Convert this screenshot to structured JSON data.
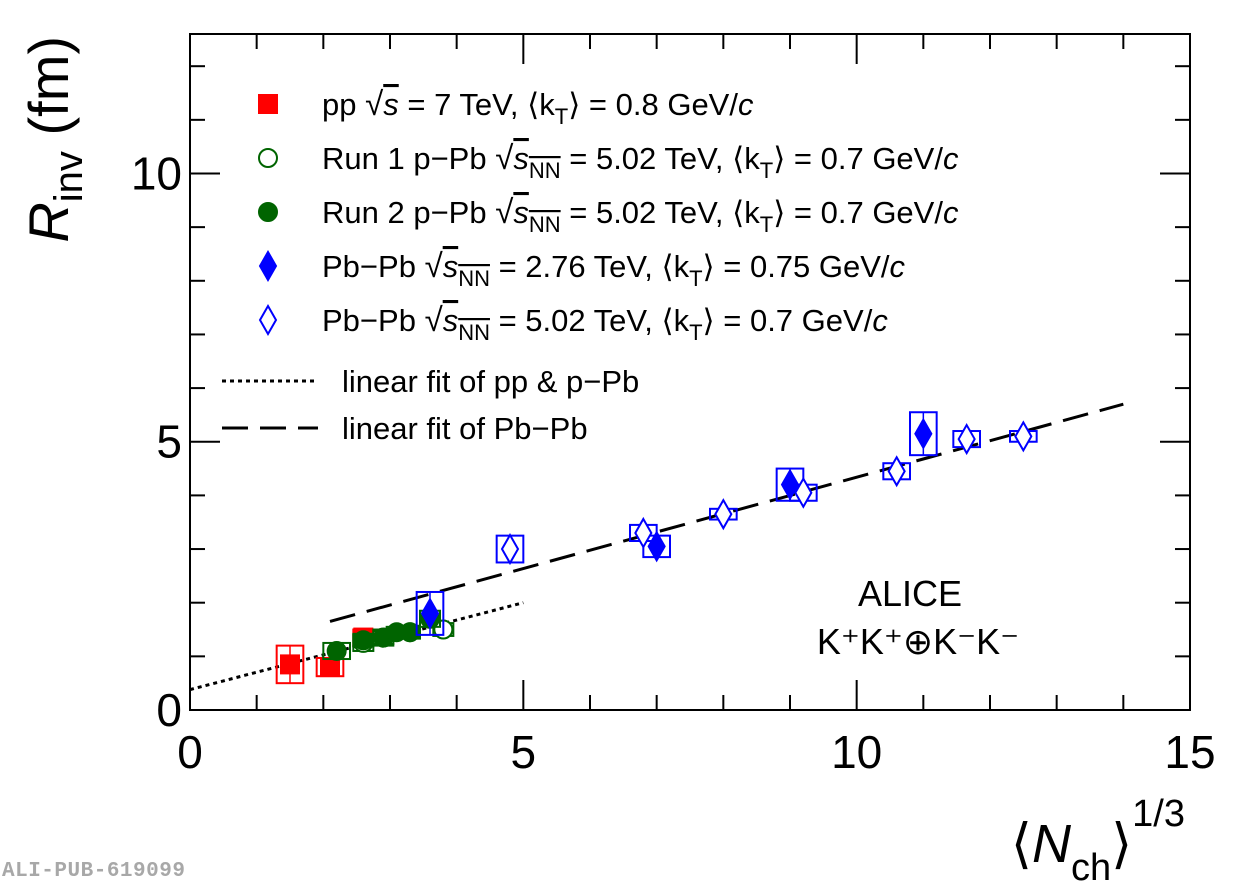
{
  "publication_id": "ALI-PUB-619099",
  "chart_data": {
    "type": "scatter",
    "xlabel_parts": {
      "bracket_open": "⟨",
      "var": "N",
      "sub": "ch",
      "bracket_close": "⟩",
      "sup": "1/3"
    },
    "ylabel_parts": {
      "var": "R",
      "sub": "inv",
      "unit": "(fm)"
    },
    "xlim": [
      0,
      15
    ],
    "ylim": [
      0,
      12.6
    ],
    "x_ticks": [
      "0",
      "5",
      "10",
      "15"
    ],
    "y_ticks": [
      "0",
      "5",
      "10"
    ],
    "annotation": {
      "experiment": "ALICE",
      "system": "K⁺K⁺⊕K⁻K⁻"
    },
    "series": [
      {
        "name": "pp √s = 7 TeV, ⟨kT⟩ = 0.8 GeV/c",
        "legend": {
          "sys": "pp",
          "root": "s",
          "root_sub": "",
          "rest": " = 7 TeV, ⟨k",
          "k_sub": "T",
          "tail": "⟩ = 0.8 GeV/",
          "c": "c"
        },
        "color": "#ff0000",
        "marker": "square-filled",
        "points": [
          {
            "x": 1.5,
            "y": 0.85,
            "sx": 0.2,
            "sy": 0.35
          },
          {
            "x": 2.1,
            "y": 0.8,
            "sx": 0.2,
            "sy": 0.17
          },
          {
            "x": 2.6,
            "y": 1.35,
            "sx": 0.15,
            "sy": 0.15
          }
        ]
      },
      {
        "name": "Run 1 p−Pb √sNN = 5.02 TeV, ⟨kT⟩ = 0.7 GeV/c",
        "legend": {
          "sys": "Run 1 p−Pb",
          "root": "s",
          "root_sub": "NN",
          "rest": " = 5.02 TeV, ⟨k",
          "k_sub": "T",
          "tail": "⟩ = 0.7 GeV/",
          "c": "c"
        },
        "color": "#006400",
        "marker": "circle-open",
        "points": [
          {
            "x": 2.6,
            "y": 1.25,
            "sx": 0.15,
            "sy": 0.15
          },
          {
            "x": 2.9,
            "y": 1.35,
            "sx": 0.15,
            "sy": 0.15
          },
          {
            "x": 3.3,
            "y": 1.45,
            "sx": 0.15,
            "sy": 0.12
          },
          {
            "x": 3.8,
            "y": 1.5,
            "sx": 0.15,
            "sy": 0.12
          }
        ]
      },
      {
        "name": "Run 2 p−Pb √sNN = 5.02 TeV, ⟨kT⟩ = 0.7 GeV/c",
        "legend": {
          "sys": "Run 2 p−Pb",
          "root": "s",
          "root_sub": "NN",
          "rest": " = 5.02 TeV, ⟨k",
          "k_sub": "T",
          "tail": "⟩ = 0.7 GeV/",
          "c": "c"
        },
        "color": "#006400",
        "marker": "circle-filled",
        "points": [
          {
            "x": 2.2,
            "y": 1.1,
            "sx": 0.2,
            "sy": 0.15
          },
          {
            "x": 2.6,
            "y": 1.3,
            "sx": 0.15,
            "sy": 0.12
          },
          {
            "x": 2.9,
            "y": 1.35,
            "sx": 0.15,
            "sy": 0.12
          },
          {
            "x": 3.1,
            "y": 1.45,
            "sx": 0.15,
            "sy": 0.1
          },
          {
            "x": 3.3,
            "y": 1.45,
            "sx": 0.15,
            "sy": 0.1
          },
          {
            "x": 3.6,
            "y": 1.7,
            "sx": 0.15,
            "sy": 0.15
          }
        ]
      },
      {
        "name": "Pb−Pb √sNN = 2.76 TeV, ⟨kT⟩ = 0.75 GeV/c",
        "legend": {
          "sys": "Pb−Pb",
          "root": "s",
          "root_sub": "NN",
          "rest": " = 2.76 TeV, ⟨k",
          "k_sub": "T",
          "tail": "⟩ = 0.75 GeV/",
          "c": "c"
        },
        "color": "#0000ff",
        "marker": "diamond-filled",
        "points": [
          {
            "x": 3.6,
            "y": 1.8,
            "sx": 0.2,
            "sy": 0.4
          },
          {
            "x": 7.0,
            "y": 3.05,
            "sx": 0.2,
            "sy": 0.2
          },
          {
            "x": 9.0,
            "y": 4.2,
            "sx": 0.2,
            "sy": 0.3
          },
          {
            "x": 11.0,
            "y": 5.15,
            "sx": 0.2,
            "sy": 0.4
          }
        ]
      },
      {
        "name": "Pb−Pb √sNN = 5.02 TeV, ⟨kT⟩ = 0.7 GeV/c",
        "legend": {
          "sys": "Pb−Pb",
          "root": "s",
          "root_sub": "NN",
          "rest": " = 5.02 TeV, ⟨k",
          "k_sub": "T",
          "tail": "⟩ = 0.7 GeV/",
          "c": "c"
        },
        "color": "#0000ff",
        "marker": "diamond-open",
        "points": [
          {
            "x": 4.8,
            "y": 3.0,
            "sx": 0.2,
            "sy": 0.25
          },
          {
            "x": 6.8,
            "y": 3.3,
            "sx": 0.2,
            "sy": 0.15
          },
          {
            "x": 8.0,
            "y": 3.65,
            "sx": 0.2,
            "sy": 0.1
          },
          {
            "x": 9.2,
            "y": 4.05,
            "sx": 0.2,
            "sy": 0.15
          },
          {
            "x": 10.6,
            "y": 4.45,
            "sx": 0.2,
            "sy": 0.15
          },
          {
            "x": 11.65,
            "y": 5.05,
            "sx": 0.2,
            "sy": 0.15
          },
          {
            "x": 12.5,
            "y": 5.1,
            "sx": 0.2,
            "sy": 0.1
          }
        ]
      }
    ],
    "fits": [
      {
        "name": "linear fit of pp & p−Pb",
        "style": "dotted",
        "x": [
          0,
          5.0
        ],
        "y": [
          0.38,
          2.0
        ]
      },
      {
        "name": "linear fit of Pb−Pb",
        "style": "dashed",
        "x": [
          2.1,
          14.0
        ],
        "y": [
          1.65,
          5.7
        ]
      }
    ]
  }
}
